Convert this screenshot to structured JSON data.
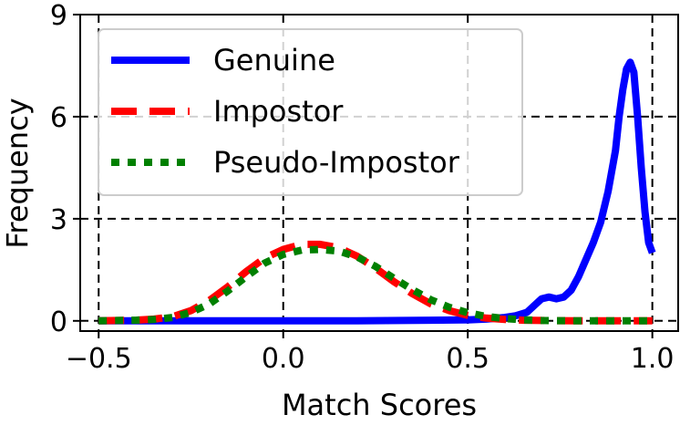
{
  "chart_data": {
    "type": "line",
    "title": "",
    "xlabel": "Match Scores",
    "ylabel": "Frequency",
    "xlim": [
      -0.55,
      1.07
    ],
    "ylim": [
      -0.3,
      9
    ],
    "xticks": [
      -0.5,
      0.0,
      0.5,
      1.0
    ],
    "xtick_labels": [
      "−0.5",
      "0.0",
      "0.5",
      "1.0"
    ],
    "yticks": [
      0,
      3,
      6,
      9
    ],
    "ytick_labels": [
      "0",
      "3",
      "6",
      "9"
    ],
    "grid": true,
    "grid_style": "dashed",
    "legend_position": "top-left",
    "series": [
      {
        "name": "Genuine",
        "color": "#0000ff",
        "style": "solid",
        "x": [
          -0.5,
          -0.3,
          0.0,
          0.2,
          0.4,
          0.5,
          0.55,
          0.6,
          0.63,
          0.66,
          0.68,
          0.7,
          0.72,
          0.74,
          0.76,
          0.78,
          0.8,
          0.82,
          0.84,
          0.86,
          0.88,
          0.9,
          0.91,
          0.92,
          0.93,
          0.94,
          0.95,
          0.96,
          0.97,
          0.98,
          0.99,
          1.0
        ],
        "y": [
          0,
          0,
          0,
          0,
          0.02,
          0.03,
          0.05,
          0.1,
          0.15,
          0.25,
          0.45,
          0.65,
          0.7,
          0.65,
          0.7,
          0.9,
          1.3,
          1.8,
          2.3,
          2.9,
          3.8,
          5.0,
          6.0,
          6.8,
          7.4,
          7.6,
          7.3,
          6.0,
          4.5,
          3.2,
          2.3,
          2.0
        ]
      },
      {
        "name": "Impostor",
        "color": "#ff0000",
        "style": "dashed",
        "x": [
          -0.5,
          -0.45,
          -0.4,
          -0.35,
          -0.3,
          -0.25,
          -0.2,
          -0.15,
          -0.1,
          -0.05,
          0.0,
          0.05,
          0.1,
          0.15,
          0.2,
          0.25,
          0.3,
          0.35,
          0.4,
          0.45,
          0.5,
          0.55,
          0.6,
          0.65,
          0.7,
          0.8,
          0.9,
          1.0
        ],
        "y": [
          0,
          0.01,
          0.02,
          0.05,
          0.12,
          0.3,
          0.6,
          1.0,
          1.45,
          1.85,
          2.1,
          2.25,
          2.25,
          2.15,
          1.9,
          1.55,
          1.15,
          0.8,
          0.5,
          0.3,
          0.16,
          0.08,
          0.04,
          0.02,
          0.01,
          0,
          0,
          0
        ]
      },
      {
        "name": "Pseudo-Impostor",
        "color": "#008000",
        "style": "dotted",
        "x": [
          -0.5,
          -0.45,
          -0.4,
          -0.35,
          -0.3,
          -0.25,
          -0.2,
          -0.15,
          -0.1,
          -0.05,
          0.0,
          0.05,
          0.1,
          0.15,
          0.2,
          0.25,
          0.3,
          0.35,
          0.4,
          0.45,
          0.5,
          0.55,
          0.6,
          0.65,
          0.7,
          0.8,
          0.9,
          1.0
        ],
        "y": [
          0,
          0.01,
          0.02,
          0.04,
          0.1,
          0.25,
          0.5,
          0.88,
          1.3,
          1.7,
          1.95,
          2.08,
          2.1,
          2.05,
          1.88,
          1.6,
          1.25,
          0.92,
          0.62,
          0.4,
          0.24,
          0.13,
          0.07,
          0.03,
          0.01,
          0,
          0,
          0
        ]
      }
    ]
  }
}
